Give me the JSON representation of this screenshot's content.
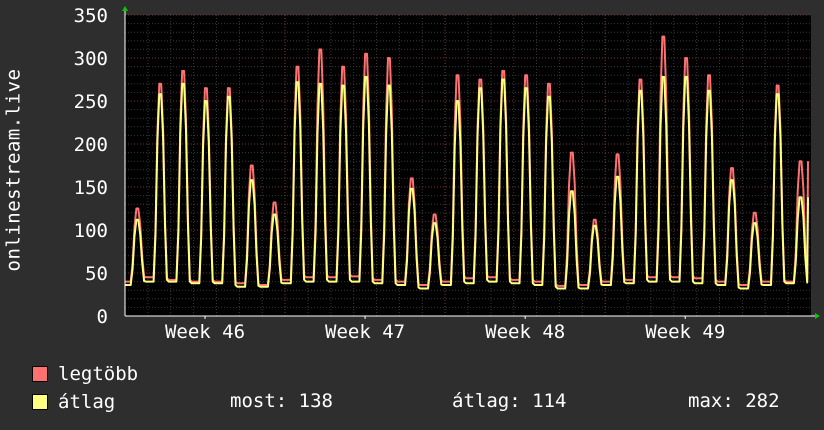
{
  "chart_data": {
    "type": "line",
    "ylabel": "onlinestream.live",
    "ylim": [
      0,
      350
    ],
    "yticks": [
      0,
      50,
      100,
      150,
      200,
      250,
      300,
      350
    ],
    "xticks": [
      "Week 46",
      "Week 47",
      "Week 48",
      "Week 49"
    ],
    "grid": true,
    "legend_position": "bottom-left",
    "background_color": "#000000",
    "series": [
      {
        "name": "legtöbb",
        "color": "#ff7070",
        "daily_peaks": [
          125,
          270,
          285,
          265,
          265,
          175,
          132,
          290,
          310,
          290,
          305,
          300,
          160,
          118,
          280,
          275,
          285,
          280,
          270,
          190,
          112,
          188,
          275,
          325,
          300,
          280,
          172,
          120,
          268,
          180
        ],
        "daily_troughs": [
          40,
          45,
          42,
          40,
          40,
          38,
          36,
          42,
          45,
          45,
          46,
          42,
          40,
          36,
          40,
          44,
          45,
          42,
          40,
          35,
          36,
          40,
          42,
          45,
          45,
          44,
          40,
          36,
          40,
          40
        ],
        "last": 180
      },
      {
        "name": "átlag",
        "color": "#ffff80",
        "daily_peaks": [
          112,
          258,
          270,
          250,
          255,
          158,
          118,
          272,
          270,
          268,
          278,
          268,
          148,
          108,
          250,
          265,
          275,
          265,
          255,
          145,
          105,
          162,
          262,
          278,
          278,
          262,
          158,
          108,
          258,
          138
        ],
        "daily_troughs": [
          36,
          40,
          40,
          38,
          38,
          34,
          34,
          38,
          40,
          40,
          40,
          38,
          36,
          32,
          36,
          38,
          40,
          38,
          36,
          32,
          32,
          36,
          38,
          40,
          40,
          38,
          36,
          32,
          36,
          38
        ],
        "last": 138
      }
    ]
  },
  "legend": {
    "max_label": "legtöbb",
    "avg_label": "átlag"
  },
  "stats": {
    "now_text": "most: 138",
    "avg_text": "átlag: 114",
    "max_text": "max: 282"
  }
}
